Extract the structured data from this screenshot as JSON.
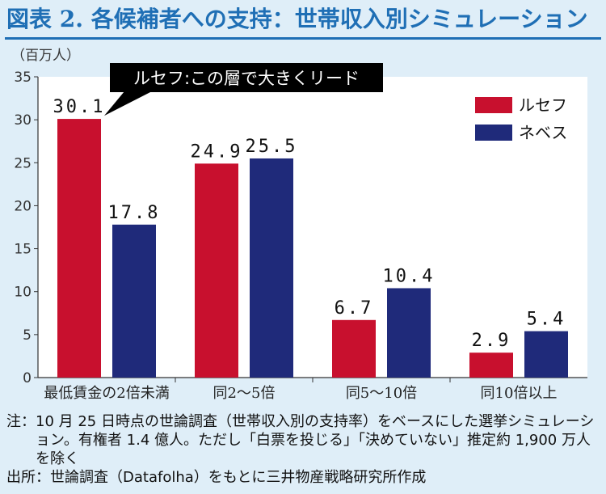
{
  "title": "図表 2. 各候補者への支持：世帯収入別シミュレーション",
  "chart_data": {
    "type": "bar",
    "unit_label": "（百万人）",
    "categories": [
      "最低賃金の2倍未満",
      "同2～5倍",
      "同5～10倍",
      "同10倍以上"
    ],
    "series": [
      {
        "name": "ルセフ",
        "color": "#c8102e",
        "values": [
          30.1,
          24.9,
          6.7,
          2.9
        ]
      },
      {
        "name": "ネベス",
        "color": "#1f2a7a",
        "values": [
          17.8,
          25.5,
          10.4,
          5.4
        ]
      }
    ],
    "ylim": [
      0,
      35
    ],
    "yticks": [
      0,
      5,
      10,
      15,
      20,
      25,
      30,
      35
    ],
    "legend_position": "top-right",
    "annotation": "ルセフ:この層で大きくリード"
  },
  "notes": {
    "note_label": "注：",
    "note_text": "10 月 25 日時点の世論調査（世帯収入別の支持率）をベースにした選挙シミュレーション。有権者 1.4 億人。ただし「白票を投じる」「決めていない」推定約 1,900 万人を除く",
    "source_label": "出所：",
    "source_text": "世論調査（Datafolha）をもとに三井物産戦略研究所作成"
  }
}
